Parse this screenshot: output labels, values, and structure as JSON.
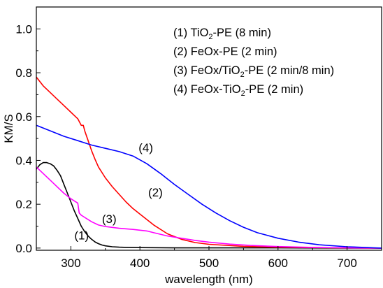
{
  "chart_data": {
    "type": "line",
    "title": "",
    "xlabel": "wavelength (nm)",
    "ylabel": "KM/S",
    "xlim": [
      250,
      750
    ],
    "ylim": [
      -0.01,
      1.1
    ],
    "xticks": [
      300,
      400,
      500,
      600,
      700
    ],
    "yticks": [
      0.0,
      0.2,
      0.4,
      0.6,
      0.8,
      1.0
    ],
    "ytick_labels": [
      "0.0",
      "0.2",
      "0.4",
      "0.6",
      "0.8",
      "1.0"
    ],
    "grid": false,
    "legend_position": "top-right",
    "legend": [
      {
        "prefix": "(1) TiO",
        "sub": "2",
        "suffix": "-PE (8 min)"
      },
      {
        "prefix": "(2) FeOx-PE (2 min)",
        "sub": "",
        "suffix": ""
      },
      {
        "prefix": "(3) FeOx/TiO",
        "sub": "2",
        "suffix": "-PE (2 min/8 min)"
      },
      {
        "prefix": "(4) FeOx-TiO",
        "sub": "2",
        "suffix": "-PE (2 min)"
      }
    ],
    "series": [
      {
        "color": "#000000",
        "label": "(1)",
        "label_at": [
          305,
          0.04
        ],
        "x": [
          250,
          255,
          260,
          265,
          270,
          275,
          280,
          285,
          290,
          295,
          300,
          305,
          310,
          315,
          320,
          325,
          330,
          335,
          340,
          345,
          350,
          360,
          370,
          380,
          400,
          450,
          500,
          600,
          700,
          750
        ],
        "y": [
          0.36,
          0.38,
          0.39,
          0.39,
          0.385,
          0.375,
          0.355,
          0.33,
          0.29,
          0.25,
          0.21,
          0.17,
          0.135,
          0.1,
          0.075,
          0.055,
          0.04,
          0.028,
          0.02,
          0.014,
          0.01,
          0.006,
          0.004,
          0.003,
          0.002,
          0.001,
          0.001,
          0.001,
          0.0,
          0.0
        ]
      },
      {
        "color": "#ff0000",
        "label": "(2)",
        "label_at": [
          412,
          0.235
        ],
        "x": [
          250,
          260,
          270,
          280,
          290,
          300,
          305,
          310,
          315,
          318,
          320,
          325,
          330,
          335,
          340,
          350,
          360,
          370,
          380,
          390,
          400,
          420,
          440,
          460,
          480,
          500,
          550,
          600,
          650,
          700,
          750
        ],
        "y": [
          0.78,
          0.74,
          0.71,
          0.68,
          0.65,
          0.62,
          0.605,
          0.59,
          0.56,
          0.56,
          0.535,
          0.49,
          0.445,
          0.405,
          0.37,
          0.32,
          0.28,
          0.245,
          0.21,
          0.18,
          0.155,
          0.105,
          0.065,
          0.04,
          0.025,
          0.017,
          0.008,
          0.004,
          0.002,
          0.001,
          0.0
        ]
      },
      {
        "color": "#ff00ff",
        "label": "(3)",
        "label_at": [
          345,
          0.115
        ],
        "x": [
          250,
          260,
          270,
          280,
          290,
          300,
          310,
          312,
          315,
          320,
          330,
          340,
          350,
          370,
          390,
          410,
          420,
          440,
          460,
          480,
          500,
          530,
          560,
          600,
          650,
          700,
          750
        ],
        "y": [
          0.37,
          0.34,
          0.31,
          0.28,
          0.25,
          0.225,
          0.205,
          0.16,
          0.15,
          0.14,
          0.12,
          0.105,
          0.098,
          0.09,
          0.085,
          0.078,
          0.07,
          0.055,
          0.045,
          0.035,
          0.027,
          0.018,
          0.012,
          0.007,
          0.003,
          0.001,
          0.0
        ]
      },
      {
        "color": "#0000ff",
        "label": "(4)",
        "label_at": [
          398,
          0.44
        ],
        "x": [
          250,
          270,
          290,
          310,
          330,
          350,
          370,
          390,
          410,
          430,
          450,
          470,
          490,
          510,
          530,
          550,
          570,
          600,
          630,
          660,
          700,
          750
        ],
        "y": [
          0.56,
          0.535,
          0.51,
          0.49,
          0.47,
          0.455,
          0.44,
          0.42,
          0.385,
          0.34,
          0.29,
          0.245,
          0.2,
          0.16,
          0.125,
          0.095,
          0.07,
          0.045,
          0.027,
          0.015,
          0.006,
          0.0
        ]
      }
    ]
  }
}
